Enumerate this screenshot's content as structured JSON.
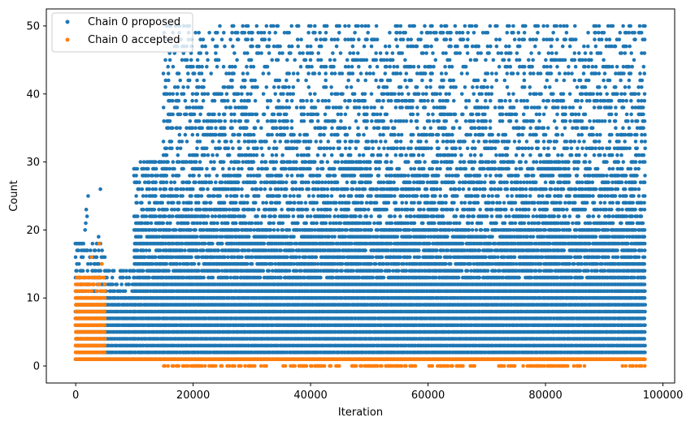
{
  "chart_data": {
    "type": "scatter",
    "xlabel": "Iteration",
    "ylabel": "Count",
    "xlim": [
      -5000,
      102000
    ],
    "ylim": [
      -2.5,
      52.5
    ],
    "xticks": [
      0,
      20000,
      40000,
      60000,
      80000,
      100000
    ],
    "xtick_labels": [
      "0",
      "20000",
      "40000",
      "60000",
      "80000",
      "100000"
    ],
    "yticks": [
      0,
      10,
      20,
      30,
      40,
      50
    ],
    "ytick_labels": [
      "0",
      "10",
      "20",
      "30",
      "40",
      "50"
    ],
    "legend_position": "upper-left",
    "series": [
      {
        "name": "Chain 0 proposed",
        "color": "#1f77b4",
        "x_range": [
          0,
          97000
        ],
        "segments": [
          {
            "x": [
              0,
              5000
            ],
            "y_min": 1,
            "y_max": 18,
            "extra_y": [
              19,
              20,
              21,
              22,
              23,
              25,
              26
            ]
          },
          {
            "x": [
              5000,
              10000
            ],
            "y_min": 1,
            "y_max": 14
          },
          {
            "x": [
              10000,
              15000
            ],
            "y_min": 1,
            "y_max": 30
          },
          {
            "x": [
              15000,
              97000
            ],
            "y_min": 1,
            "y_max": 50
          }
        ]
      },
      {
        "name": "Chain 0 accepted",
        "color": "#ff7f0e",
        "x_range": [
          0,
          97000
        ],
        "segments": [
          {
            "x": [
              0,
              5000
            ],
            "y_min": 1,
            "y_max": 13,
            "extra_y": [
              15,
              16,
              18
            ]
          },
          {
            "x": [
              5000,
              97000
            ],
            "y_values": [
              1
            ]
          },
          {
            "x": [
              15000,
              97000
            ],
            "y_values": [
              0
            ],
            "sparse": true
          }
        ]
      }
    ]
  }
}
